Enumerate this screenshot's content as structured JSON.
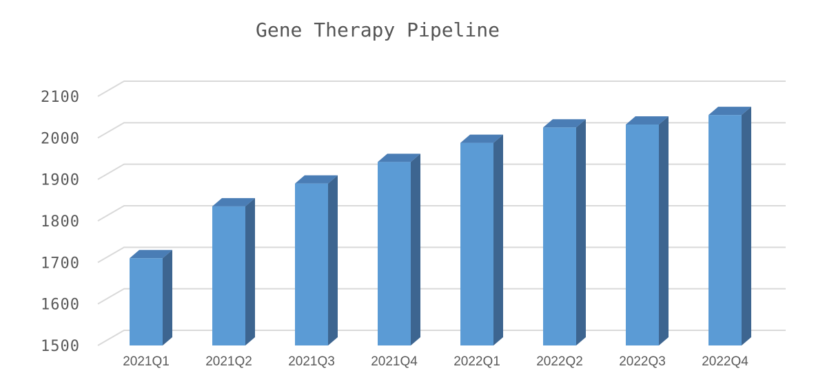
{
  "chart_data": {
    "type": "bar",
    "title": "Gene Therapy Pipeline",
    "xlabel": "",
    "ylabel": "",
    "categories": [
      "2021Q1",
      "2021Q2",
      "2021Q3",
      "2021Q4",
      "2022Q1",
      "2022Q2",
      "2022Q3",
      "2022Q4"
    ],
    "values": [
      1710,
      1835,
      1890,
      1942,
      1988,
      2025,
      2032,
      2055
    ],
    "ylim": [
      1500,
      2100
    ],
    "yticks": [
      "1500",
      "1600",
      "1700",
      "1800",
      "1900",
      "2000",
      "2100"
    ],
    "grid": true,
    "legend": "none",
    "three_d": true,
    "colors": {
      "bar_front": "#5b9bd5",
      "bar_side": "#3d6590",
      "bar_top": "#4a7db5",
      "grid": "#d9d9d9",
      "text": "#595959"
    }
  }
}
